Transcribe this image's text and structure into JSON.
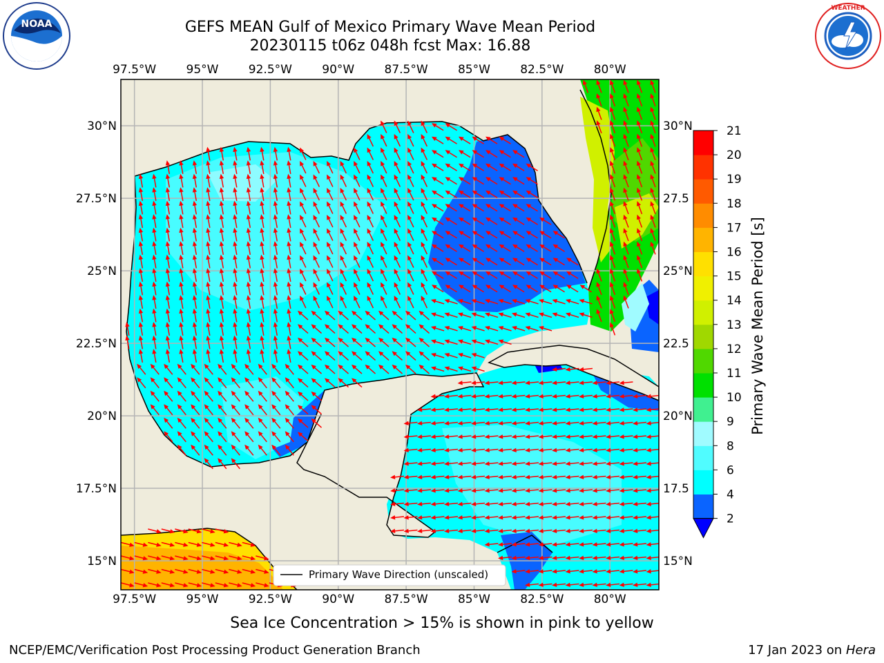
{
  "title": {
    "line1": "GEFS MEAN Gulf of Mexico Primary Wave Mean Period",
    "line2": "20230115 t06z 048h fcst   Max: 16.88"
  },
  "logos": {
    "left": {
      "name": "NOAA",
      "text": "NOAA"
    },
    "right": {
      "name": "National Weather Service",
      "text": "NATIONAL WEATHER SERVICE"
    }
  },
  "map": {
    "lon_ticks": [
      "97.5°W",
      "95°W",
      "92.5°W",
      "90°W",
      "87.5°W",
      "85°W",
      "82.5°W",
      "80°W"
    ],
    "lat_ticks_left": [
      "30°N",
      "27.5°N",
      "25°N",
      "22.5°N",
      "20°N",
      "17.5°N",
      "15°N"
    ],
    "lat_ticks_right": [
      "30°N",
      "27.5",
      "25°N",
      "22.5",
      "20°N",
      "17.5",
      "15°N"
    ],
    "lon_range": [
      -98,
      -78.2
    ],
    "lat_range": [
      14,
      31.6
    ],
    "grid": true,
    "land_color": "#efecdc",
    "arrow_color": "#ff0000",
    "legend_label": "Primary Wave Direction (unscaled)"
  },
  "colorbar": {
    "label": "Primary Wave Mean Period [s]",
    "ticks": [
      "2",
      "4",
      "6",
      "8",
      "9",
      "10",
      "11",
      "12",
      "13",
      "14",
      "15",
      "16",
      "17",
      "18",
      "19",
      "20",
      "21"
    ],
    "colors": [
      "#0a64ff",
      "#00ffff",
      "#50fcff",
      "#a0fbff",
      "#40f090",
      "#00e000",
      "#50d800",
      "#a0d800",
      "#d0f000",
      "#f0f000",
      "#ffe000",
      "#ffb400",
      "#ff8c00",
      "#ff5a00",
      "#ff3200",
      "#ff0000"
    ],
    "under_color": "#0000ff"
  },
  "caption": "Sea Ice Concentration > 15% is shown in pink to yellow",
  "footer": {
    "left": "NCEP/EMC/Verification Post Processing Product Generation Branch",
    "right_prefix": "17 Jan 2023 on ",
    "right_host": "Hera"
  }
}
